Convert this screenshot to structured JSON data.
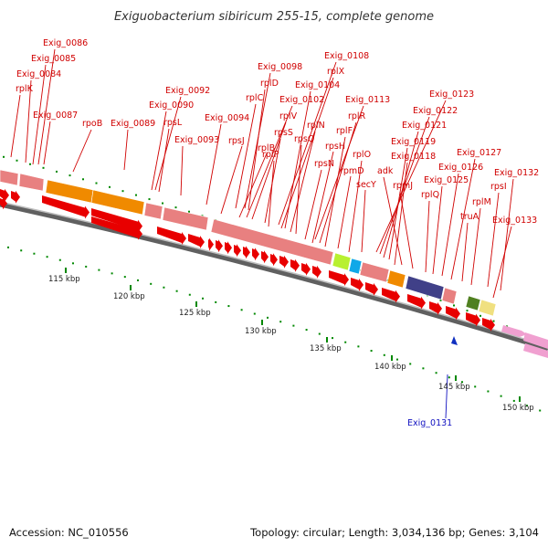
{
  "title": "Exiguobacterium sibiricum 255-15, complete genome",
  "footer": {
    "accession": "Accession: NC_010556",
    "summary": "Topology: circular; Length: 3,034,136 bp; Genes: 3,104"
  },
  "colors": {
    "gene_arrow": "#e80000",
    "gene_pink": "#e88080",
    "backbone": "#777777",
    "tick": "#008800",
    "label_red": "#d00000",
    "label_blue": "#1010c0"
  },
  "ticks": [
    "115 kbp",
    "120 kbp",
    "125 kbp",
    "130 kbp",
    "135 kbp",
    "140 kbp",
    "145 kbp",
    "150 kbp"
  ],
  "labels": [
    {
      "text": "Exig_0086"
    },
    {
      "text": "Exig_0085"
    },
    {
      "text": "Exig_0084"
    },
    {
      "text": "rplK"
    },
    {
      "text": "Exig_0087"
    },
    {
      "text": "rpoB"
    },
    {
      "text": "Exig_0089"
    },
    {
      "text": "Exig_0092"
    },
    {
      "text": "Exig_0090"
    },
    {
      "text": "rpsL"
    },
    {
      "text": "Exig_0093"
    },
    {
      "text": "Exig_0094"
    },
    {
      "text": "Exig_0098"
    },
    {
      "text": "rplD"
    },
    {
      "text": "rplC"
    },
    {
      "text": "rpsJ"
    },
    {
      "text": "rplB"
    },
    {
      "text": "Exig_0102"
    },
    {
      "text": "rplV"
    },
    {
      "text": "rpsS"
    },
    {
      "text": "rplP"
    },
    {
      "text": "Exig_0108"
    },
    {
      "text": "rplX"
    },
    {
      "text": "Exig_0104"
    },
    {
      "text": "rplN"
    },
    {
      "text": "rpsQ"
    },
    {
      "text": "rpsN"
    },
    {
      "text": "Exig_0113"
    },
    {
      "text": "rplR"
    },
    {
      "text": "rpsH"
    },
    {
      "text": "rplF"
    },
    {
      "text": "rpmD"
    },
    {
      "text": "rplO"
    },
    {
      "text": "secY"
    },
    {
      "text": "Exig_0123"
    },
    {
      "text": "Exig_0122"
    },
    {
      "text": "Exig_0121"
    },
    {
      "text": "Exig_0119"
    },
    {
      "text": "Exig_0118"
    },
    {
      "text": "adk"
    },
    {
      "text": "rpmJ"
    },
    {
      "text": "rplQ"
    },
    {
      "text": "Exig_0125"
    },
    {
      "text": "Exig_0126"
    },
    {
      "text": "Exig_0127"
    },
    {
      "text": "truA"
    },
    {
      "text": "rplM"
    },
    {
      "text": "rpsI"
    },
    {
      "text": "Exig_0132"
    },
    {
      "text": "Exig_0133"
    },
    {
      "text": "Exig_0131",
      "strand": "reverse"
    }
  ]
}
